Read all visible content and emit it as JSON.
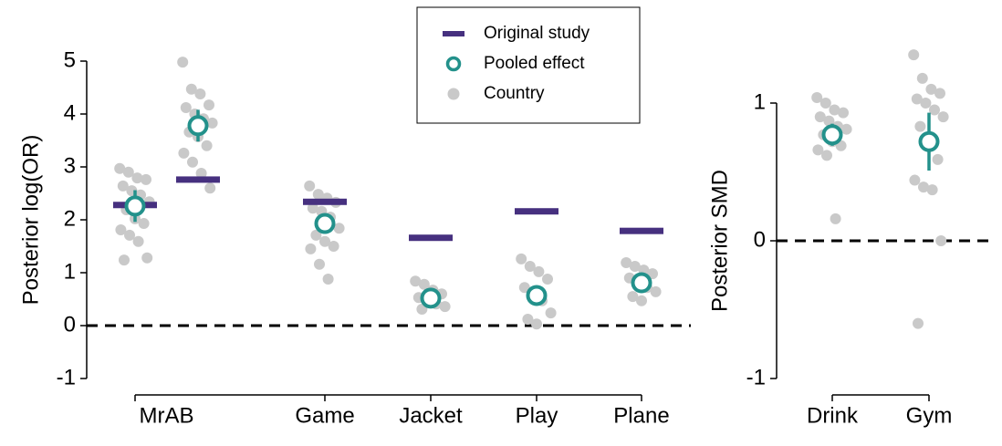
{
  "chart_data": [
    {
      "type": "dot",
      "ylabel": "Posterior log(OR)",
      "categories": [
        "MrAB",
        null,
        "Game",
        "Jacket",
        "Play",
        "Plane"
      ],
      "ylim": [
        -1,
        5
      ],
      "yticks": [
        -1,
        0,
        1,
        2,
        3,
        4,
        5
      ],
      "hline": 0,
      "legend": "top",
      "series": [
        {
          "name": "Original study",
          "color": "#46307f",
          "marker": "bar",
          "values": [
            2.28,
            2.76,
            2.34,
            1.66,
            2.16,
            1.79
          ]
        },
        {
          "name": "Pooled effect",
          "color": "#23918b",
          "marker": "ring",
          "values": [
            2.26,
            3.78,
            1.93,
            0.52,
            0.57,
            0.81
          ],
          "error": [
            0.3,
            0.3,
            0.17,
            0.1,
            0.15,
            0.1
          ]
        },
        {
          "name": "Country",
          "color": "#c9c9c9",
          "marker": "dot",
          "values": [
            [
              2.97,
              2.9,
              2.79,
              2.76,
              2.64,
              2.55,
              2.47,
              2.34,
              2.19,
              2.02,
              1.93,
              1.81,
              1.71,
              1.59,
              1.28,
              1.24
            ],
            [
              4.98,
              4.47,
              4.38,
              4.17,
              4.12,
              4.0,
              3.91,
              3.83,
              3.66,
              3.57,
              3.4,
              3.26,
              3.09,
              2.88,
              2.6
            ],
            [
              2.64,
              2.48,
              2.41,
              2.33,
              2.22,
              2.16,
              2.05,
              1.84,
              1.71,
              1.59,
              1.5,
              1.45,
              1.16,
              0.88
            ],
            [
              0.84,
              0.78,
              0.67,
              0.6,
              0.53,
              0.47,
              0.41,
              0.36,
              0.31
            ],
            [
              1.26,
              1.12,
              1.02,
              0.88,
              0.72,
              0.64,
              0.47,
              0.24,
              0.12,
              0.03
            ],
            [
              1.19,
              1.12,
              1.05,
              0.98,
              0.9,
              0.81,
              0.72,
              0.64,
              0.55,
              0.47
            ]
          ]
        }
      ]
    },
    {
      "type": "dot",
      "ylabel": "Posterior SMD",
      "categories": [
        "Drink",
        "Gym"
      ],
      "ylim": [
        -1,
        1
      ],
      "yticks": [
        -1,
        0,
        1
      ],
      "hline": 0,
      "series": [
        {
          "color": "#23918b",
          "marker": "ring",
          "values": [
            0.77,
            0.72
          ],
          "error": [
            0.08,
            0.21
          ]
        },
        {
          "color": "#c9c9c9",
          "marker": "dot",
          "values": [
            [
              1.04,
              1.0,
              0.95,
              0.93,
              0.9,
              0.87,
              0.83,
              0.81,
              0.77,
              0.72,
              0.69,
              0.66,
              0.62,
              0.16
            ],
            [
              1.35,
              1.18,
              1.1,
              1.07,
              1.03,
              1.0,
              0.95,
              0.9,
              0.83,
              0.69,
              0.59,
              0.44,
              0.39,
              0.37,
              0.0,
              -0.6
            ]
          ]
        }
      ]
    }
  ]
}
